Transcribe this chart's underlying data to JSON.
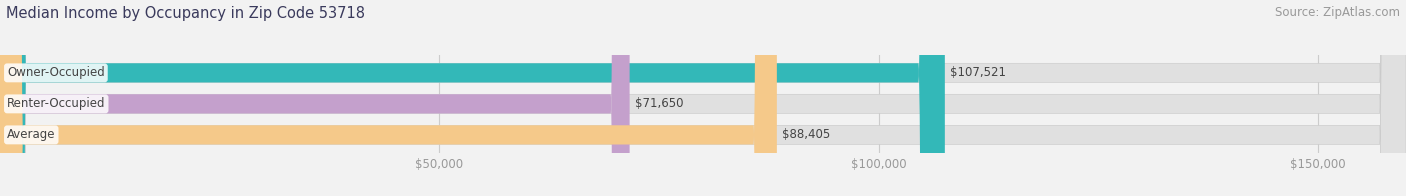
{
  "title": "Median Income by Occupancy in Zip Code 53718",
  "source": "Source: ZipAtlas.com",
  "categories": [
    "Owner-Occupied",
    "Renter-Occupied",
    "Average"
  ],
  "values": [
    107521,
    71650,
    88405
  ],
  "bar_colors": [
    "#33b8b8",
    "#c4a0cc",
    "#f5c98a"
  ],
  "value_labels": [
    "$107,521",
    "$71,650",
    "$88,405"
  ],
  "xlim_max": 160000,
  "xticks": [
    50000,
    100000,
    150000
  ],
  "xtick_labels": [
    "$50,000",
    "$100,000",
    "$150,000"
  ],
  "background_color": "#f2f2f2",
  "bar_bg_color": "#e0e0e0",
  "title_color": "#3a3a5c",
  "source_color": "#999999",
  "label_color": "#444444",
  "value_label_color": "#444444",
  "title_fontsize": 10.5,
  "source_fontsize": 8.5,
  "tick_fontsize": 8.5,
  "bar_label_fontsize": 8.5,
  "category_fontsize": 8.5,
  "bar_height": 0.62,
  "grid_color": "#cccccc"
}
